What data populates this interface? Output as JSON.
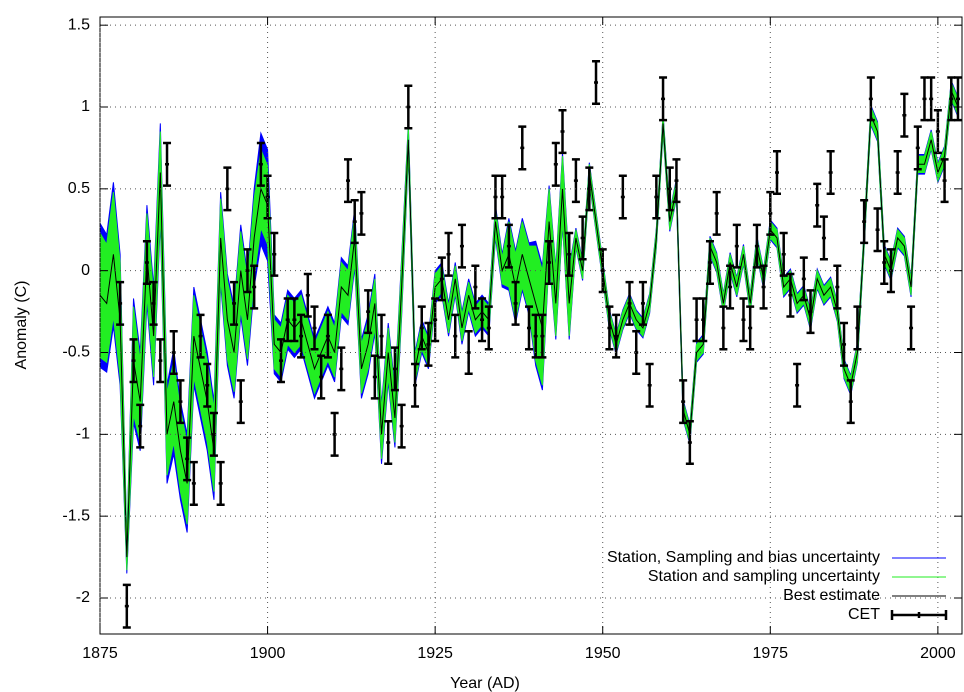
{
  "chart_data": {
    "type": "band-line-errorbar",
    "x_label": "Year (AD)",
    "y_label": "Anomaly (C)",
    "xlim": [
      1875,
      2003.6
    ],
    "ylim": [
      -2.22,
      1.55
    ],
    "xticks": [
      1875,
      1900,
      1925,
      1950,
      1975,
      2000
    ],
    "yticks": [
      -2,
      -1.5,
      -1,
      -0.5,
      0,
      0.5,
      1,
      1.5
    ],
    "grid": true,
    "legend": "lower right",
    "x": [
      1875,
      1876,
      1877,
      1878,
      1879,
      1880,
      1881,
      1882,
      1883,
      1884,
      1885,
      1886,
      1887,
      1888,
      1889,
      1890,
      1891,
      1892,
      1893,
      1894,
      1895,
      1896,
      1897,
      1898,
      1899,
      1900,
      1901,
      1902,
      1903,
      1904,
      1905,
      1906,
      1907,
      1908,
      1909,
      1910,
      1911,
      1912,
      1913,
      1914,
      1915,
      1916,
      1917,
      1918,
      1919,
      1920,
      1921,
      1922,
      1923,
      1924,
      1925,
      1926,
      1927,
      1928,
      1929,
      1930,
      1931,
      1932,
      1933,
      1934,
      1935,
      1936,
      1937,
      1938,
      1939,
      1940,
      1941,
      1942,
      1943,
      1944,
      1945,
      1946,
      1947,
      1948,
      1949,
      1950,
      1951,
      1952,
      1953,
      1954,
      1955,
      1956,
      1957,
      1958,
      1959,
      1960,
      1961,
      1962,
      1963,
      1964,
      1965,
      1966,
      1967,
      1968,
      1969,
      1970,
      1971,
      1972,
      1973,
      1974,
      1975,
      1976,
      1977,
      1978,
      1979,
      1980,
      1981,
      1982,
      1983,
      1984,
      1985,
      1986,
      1987,
      1988,
      1989,
      1990,
      1991,
      1992,
      1993,
      1994,
      1995,
      1996,
      1997,
      1998,
      1999,
      2000,
      2001,
      2002,
      2003
    ],
    "series": [
      {
        "name": "Station, Sampling and bias uncertainty",
        "color": "#0000ff",
        "kind": "band",
        "values": [
          0.44,
          0.42,
          0.44,
          0.4,
          0.1,
          0.38,
          0.3,
          0.3,
          0.3,
          0.3,
          0.3,
          0.32,
          0.3,
          0.3,
          0.3,
          0.3,
          0.3,
          0.3,
          0.28,
          0.28,
          0.28,
          0.28,
          0.28,
          0.3,
          0.34,
          0.34,
          0.18,
          0.18,
          0.18,
          0.18,
          0.18,
          0.18,
          0.18,
          0.18,
          0.18,
          0.18,
          0.18,
          0.18,
          0.18,
          0.18,
          0.18,
          0.18,
          0.18,
          0.18,
          0.18,
          0.18,
          0.1,
          0.1,
          0.1,
          0.1,
          0.1,
          0.1,
          0.1,
          0.1,
          0.1,
          0.1,
          0.1,
          0.1,
          0.1,
          0.1,
          0.1,
          0.22,
          0.22,
          0.22,
          0.22,
          0.38,
          0.38,
          0.22,
          0.22,
          0.22,
          0.22,
          0.06,
          0.06,
          0.06,
          0.06,
          0.06,
          0.06,
          0.06,
          0.06,
          0.06,
          0.06,
          0.06,
          0.06,
          0.06,
          0.06,
          0.06,
          0.06,
          0.06,
          0.06,
          0.06,
          0.06,
          0.06,
          0.06,
          0.06,
          0.06,
          0.06,
          0.06,
          0.06,
          0.06,
          0.06,
          0.06,
          0.06,
          0.06,
          0.06,
          0.06,
          0.06,
          0.06,
          0.06,
          0.06,
          0.06,
          0.06,
          0.06,
          0.06,
          0.06,
          0.06,
          0.06,
          0.06,
          0.06,
          0.06,
          0.06,
          0.06,
          0.06,
          0.06,
          0.06,
          0.06,
          0.06,
          0.06,
          0.06,
          0.06
        ]
      },
      {
        "name": "Station and sampling uncertainty",
        "color": "#22ee22",
        "kind": "band",
        "values": [
          0.38,
          0.36,
          0.38,
          0.35,
          0.08,
          0.33,
          0.25,
          0.25,
          0.25,
          0.25,
          0.25,
          0.25,
          0.25,
          0.25,
          0.25,
          0.25,
          0.25,
          0.25,
          0.24,
          0.24,
          0.24,
          0.24,
          0.24,
          0.24,
          0.24,
          0.24,
          0.15,
          0.15,
          0.15,
          0.15,
          0.15,
          0.15,
          0.15,
          0.15,
          0.15,
          0.15,
          0.15,
          0.15,
          0.15,
          0.15,
          0.15,
          0.15,
          0.15,
          0.15,
          0.15,
          0.15,
          0.08,
          0.08,
          0.08,
          0.08,
          0.08,
          0.08,
          0.08,
          0.08,
          0.08,
          0.08,
          0.08,
          0.08,
          0.08,
          0.08,
          0.08,
          0.2,
          0.2,
          0.2,
          0.2,
          0.35,
          0.35,
          0.2,
          0.2,
          0.2,
          0.2,
          0.05,
          0.05,
          0.05,
          0.05,
          0.05,
          0.05,
          0.05,
          0.05,
          0.05,
          0.05,
          0.05,
          0.05,
          0.05,
          0.05,
          0.05,
          0.05,
          0.05,
          0.05,
          0.05,
          0.05,
          0.05,
          0.05,
          0.05,
          0.05,
          0.05,
          0.05,
          0.05,
          0.05,
          0.05,
          0.05,
          0.05,
          0.05,
          0.05,
          0.05,
          0.05,
          0.05,
          0.05,
          0.05,
          0.05,
          0.05,
          0.05,
          0.05,
          0.05,
          0.05,
          0.05,
          0.05,
          0.05,
          0.05,
          0.05,
          0.05,
          0.05,
          0.05,
          0.05,
          0.05,
          0.05,
          0.05,
          0.05,
          0.05
        ]
      },
      {
        "name": "Best estimate",
        "color": "#000000",
        "kind": "line",
        "values": [
          -0.15,
          -0.2,
          0.1,
          -0.3,
          -1.75,
          -0.55,
          -0.8,
          0.1,
          -0.4,
          0.6,
          -1.0,
          -0.8,
          -1.1,
          -1.3,
          -0.4,
          -0.6,
          -0.8,
          -1.1,
          0.2,
          -0.3,
          -0.5,
          0.0,
          -0.3,
          0.2,
          0.5,
          0.4,
          -0.45,
          -0.5,
          -0.3,
          -0.35,
          -0.3,
          -0.45,
          -0.6,
          -0.5,
          -0.4,
          -0.5,
          -0.1,
          -0.15,
          0.2,
          -0.6,
          -0.45,
          -0.2,
          -1.0,
          -0.5,
          -0.9,
          -0.1,
          0.8,
          -0.6,
          -0.4,
          -0.5,
          -0.1,
          -0.05,
          -0.3,
          -0.05,
          -0.35,
          -0.15,
          -0.3,
          -0.25,
          -0.3,
          0.3,
          0.0,
          0.1,
          -0.1,
          0.1,
          -0.05,
          -0.2,
          -0.35,
          0.3,
          -0.2,
          0.5,
          -0.2,
          0.2,
          0.0,
          0.6,
          0.3,
          0.0,
          -0.3,
          -0.45,
          -0.3,
          -0.2,
          -0.3,
          -0.35,
          -0.2,
          0.2,
          0.9,
          0.3,
          0.5,
          -0.85,
          -1.0,
          -0.5,
          -0.45,
          0.15,
          0.05,
          -0.2,
          0.05,
          -0.1,
          0.1,
          -0.2,
          0.15,
          -0.05,
          0.25,
          0.2,
          -0.1,
          -0.05,
          -0.2,
          -0.15,
          -0.3,
          -0.05,
          -0.15,
          -0.1,
          -0.25,
          -0.6,
          -0.7,
          -0.5,
          0.2,
          0.95,
          0.85,
          0.1,
          0.0,
          0.2,
          0.15,
          -0.1,
          0.65,
          0.65,
          0.8,
          0.6,
          0.7,
          1.1,
          1.0
        ]
      },
      {
        "name": "CET",
        "color": "#000000",
        "kind": "errorbar",
        "error": 0.13,
        "x": [
          1878,
          1879,
          1880,
          1881,
          1882,
          1883,
          1884,
          1885,
          1886,
          1887,
          1888,
          1889,
          1890,
          1891,
          1892,
          1893,
          1894,
          1895,
          1896,
          1897,
          1898,
          1899,
          1900,
          1901,
          1902,
          1903,
          1904,
          1905,
          1906,
          1907,
          1908,
          1909,
          1910,
          1911,
          1912,
          1913,
          1914,
          1915,
          1916,
          1917,
          1918,
          1919,
          1920,
          1921,
          1922,
          1923,
          1924,
          1925,
          1926,
          1927,
          1928,
          1929,
          1930,
          1931,
          1932,
          1933,
          1934,
          1935,
          1936,
          1937,
          1938,
          1939,
          1940,
          1941,
          1942,
          1943,
          1944,
          1945,
          1946,
          1947,
          1948,
          1949,
          1950,
          1951,
          1952,
          1953,
          1954,
          1955,
          1956,
          1957,
          1958,
          1959,
          1960,
          1961,
          1962,
          1963,
          1964,
          1965,
          1966,
          1967,
          1968,
          1969,
          1970,
          1971,
          1972,
          1973,
          1974,
          1975,
          1976,
          1977,
          1978,
          1979,
          1980,
          1981,
          1982,
          1983,
          1984,
          1985,
          1986,
          1987,
          1988,
          1989,
          1990,
          1991,
          1992,
          1993,
          1994,
          1995,
          1996,
          1997,
          1998,
          1999,
          2000,
          2001,
          2002,
          2003
        ],
        "values": [
          -0.2,
          -2.05,
          -0.55,
          -0.95,
          0.05,
          -0.2,
          -0.55,
          0.65,
          -0.5,
          -0.8,
          -1.15,
          -1.3,
          -0.4,
          -0.7,
          -1.0,
          -1.3,
          0.5,
          -0.2,
          -0.8,
          0.0,
          -0.1,
          0.65,
          0.45,
          0.1,
          -0.55,
          -0.3,
          -0.3,
          -0.4,
          -0.15,
          -0.35,
          -0.65,
          -0.4,
          -1.0,
          -0.6,
          0.55,
          0.3,
          0.35,
          -0.25,
          -0.65,
          -0.4,
          -1.05,
          -0.6,
          -0.95,
          1.0,
          -0.7,
          -0.35,
          -0.45,
          -0.3,
          -0.05,
          0.1,
          -0.4,
          0.15,
          -0.5,
          -0.1,
          -0.3,
          -0.35,
          0.45,
          0.45,
          0.15,
          -0.2,
          0.75,
          -0.35,
          -0.4,
          -0.4,
          0.05,
          0.65,
          0.85,
          0.1,
          0.55,
          0.2,
          0.5,
          1.15,
          0.0,
          -0.35,
          -0.4,
          0.45,
          -0.2,
          -0.5,
          -0.2,
          -0.7,
          0.45,
          1.05,
          0.5,
          0.55,
          -0.8,
          -1.05,
          -0.3,
          -0.3,
          0.05,
          0.35,
          -0.35,
          -0.1,
          0.15,
          -0.3,
          -0.35,
          0.15,
          -0.1,
          0.35,
          0.6,
          0.1,
          -0.15,
          -0.7,
          -0.05,
          -0.25,
          0.4,
          0.2,
          0.6,
          -0.1,
          -0.45,
          -0.8,
          -0.35,
          0.3,
          1.05,
          0.25,
          0.05,
          0.0,
          0.6,
          0.95,
          -0.35,
          0.75,
          1.05,
          1.05,
          0.85,
          0.55,
          1.05,
          1.05
        ]
      }
    ]
  }
}
